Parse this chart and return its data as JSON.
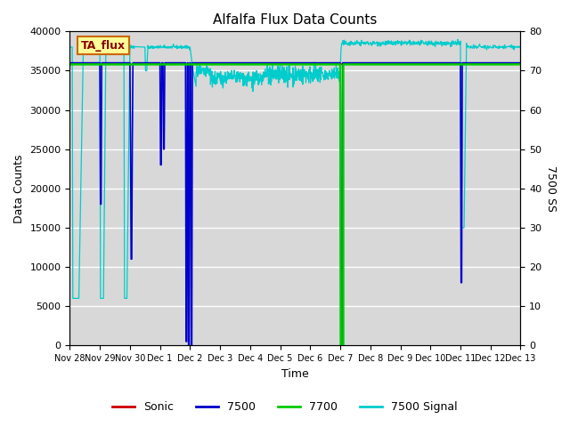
{
  "title": "Alfalfa Flux Data Counts",
  "xlabel": "Time",
  "ylabel_left": "Data Counts",
  "ylabel_right": "7500 SS",
  "ylim_left": [
    0,
    40000
  ],
  "ylim_right": [
    0,
    80
  ],
  "annotation": "TA_flux",
  "xtick_labels": [
    "Nov 28",
    "Nov 29",
    "Nov 30",
    "Dec 1",
    "Dec 2",
    "Dec 3",
    "Dec 4",
    "Dec 5",
    "Dec 6",
    "Dec 7",
    "Dec 8",
    "Dec 9",
    "Dec 10",
    "Dec 11",
    "Dec 12",
    "Dec 13"
  ],
  "colors": {
    "sonic": "#cc0000",
    "7500": "#0000cc",
    "7700": "#00cc00",
    "7500_signal": "#00cccc",
    "background": "#d8d8d8",
    "annotation_bg": "#ffff99",
    "annotation_border": "#cc6600"
  },
  "legend": [
    "Sonic",
    "7500",
    "7700",
    "7500 Signal"
  ]
}
